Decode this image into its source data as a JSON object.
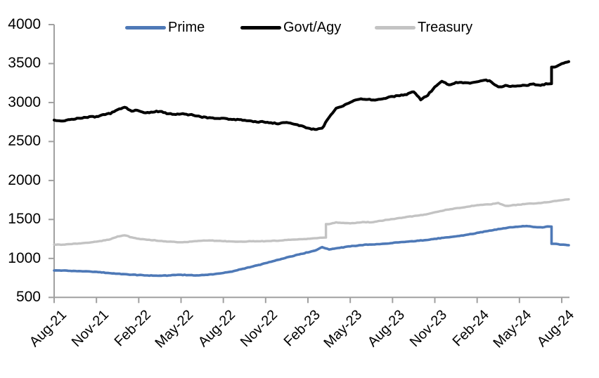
{
  "chart_data": {
    "type": "line",
    "title": "",
    "legend_position": "top",
    "grid": false,
    "x_unit": "months since Aug-2021 (series sampled every 0.5 month)",
    "x_axis": {
      "tick_labels": [
        "Aug-21",
        "Nov-21",
        "Feb-22",
        "May-22",
        "Aug-22",
        "Nov-22",
        "Feb-23",
        "May-23",
        "Aug-23",
        "Nov-23",
        "Feb-24",
        "May-24",
        "Aug-24"
      ],
      "tick_interval_months": 3,
      "range_months": [
        0,
        36.5
      ]
    },
    "y_axis": {
      "tick_labels": [
        "4000",
        "3500",
        "3000",
        "2500",
        "2000",
        "1500",
        "1000",
        "500"
      ],
      "min": 500,
      "max": 4000,
      "tick_step": 500
    },
    "series": [
      {
        "name": "Prime",
        "color": "#4e79b7",
        "t_start_months": 0,
        "t_step_months": 0.5,
        "values": [
          845,
          845,
          842,
          839,
          836,
          831,
          826,
          819,
          811,
          804,
          797,
          792,
          787,
          783,
          780,
          778,
          781,
          787,
          791,
          786,
          782,
          786,
          793,
          801,
          813,
          829,
          849,
          871,
          893,
          916,
          939,
          963,
          988,
          1013,
          1036,
          1058,
          1079,
          1100,
          1145,
          1115,
          1130,
          1143,
          1156,
          1166,
          1174,
          1179,
          1183,
          1189,
          1198,
          1207,
          1214,
          1221,
          1229,
          1239,
          1251,
          1261,
          1271,
          1283,
          1296,
          1311,
          1326,
          1343,
          1361,
          1376,
          1391,
          1401,
          1409,
          1416,
          1406,
          1398,
          1409,
          1188,
          1176,
          1170
        ]
      },
      {
        "name": "Govt/Agy",
        "color": "#000000",
        "t_start_months": 0,
        "t_step_months": 0.5,
        "values": [
          2775,
          2758,
          2778,
          2788,
          2803,
          2812,
          2822,
          2840,
          2862,
          2912,
          2938,
          2888,
          2902,
          2863,
          2880,
          2890,
          2858,
          2848,
          2856,
          2846,
          2830,
          2812,
          2806,
          2798,
          2796,
          2788,
          2782,
          2772,
          2760,
          2752,
          2746,
          2738,
          2728,
          2752,
          2722,
          2700,
          2672,
          2652,
          2668,
          2815,
          2925,
          2958,
          3005,
          3042,
          3048,
          3030,
          3040,
          3058,
          3078,
          3090,
          3108,
          3142,
          3040,
          3095,
          3200,
          3272,
          3222,
          3252,
          3255,
          3248,
          3268,
          3288,
          3268,
          3198,
          3215,
          3208,
          3215,
          3222,
          3232,
          3222,
          3242,
          3455,
          3495,
          3525
        ]
      },
      {
        "name": "Treasury",
        "color": "#c3c3c3",
        "t_start_months": 0,
        "t_step_months": 0.5,
        "values": [
          1178,
          1175,
          1182,
          1188,
          1196,
          1205,
          1215,
          1228,
          1248,
          1280,
          1298,
          1270,
          1252,
          1242,
          1235,
          1225,
          1218,
          1212,
          1206,
          1212,
          1220,
          1228,
          1232,
          1226,
          1222,
          1218,
          1214,
          1217,
          1220,
          1222,
          1220,
          1224,
          1230,
          1236,
          1240,
          1246,
          1252,
          1258,
          1268,
          1440,
          1462,
          1455,
          1450,
          1458,
          1468,
          1462,
          1478,
          1492,
          1505,
          1518,
          1532,
          1544,
          1556,
          1570,
          1592,
          1612,
          1628,
          1642,
          1655,
          1668,
          1682,
          1692,
          1695,
          1712,
          1672,
          1682,
          1692,
          1700,
          1706,
          1712,
          1722,
          1735,
          1748,
          1758
        ]
      }
    ]
  },
  "axis_color": "#a0a0a0"
}
